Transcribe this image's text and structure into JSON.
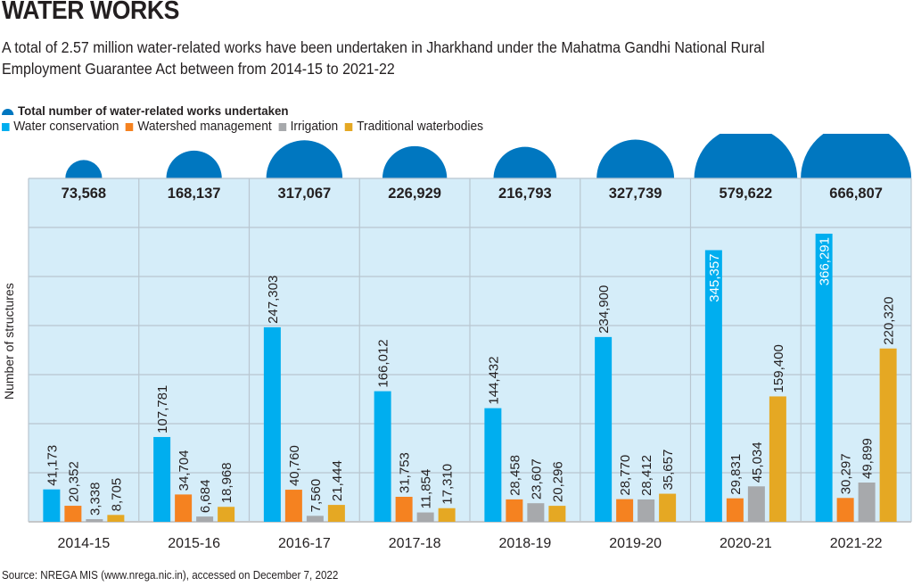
{
  "header": {
    "title": "WATER WORKS",
    "subtitle_line1": "A total of 2.57 million water-related works have been undertaken in Jharkhand under the Mahatma Gandhi National Rural",
    "subtitle_line2": "Employment Guarantee Act between from 2014-15 to 2021-22"
  },
  "legend": {
    "total_label": "Total number of water-related works undertaken",
    "series": [
      {
        "label": "Water conservation",
        "color": "#00aeef"
      },
      {
        "label": "Watershed management",
        "color": "#f58220"
      },
      {
        "label": "Irrigation",
        "color": "#a7a9ac"
      },
      {
        "label": "Traditional waterbodies",
        "color": "#e5a823"
      }
    ]
  },
  "colors": {
    "panel_bg": "#d5edf9",
    "grid": "#b9c6d0",
    "total_semicircle": "#0077c0",
    "text": "#231f20"
  },
  "source": "Source: NREGA MIS (www.nrega.nic.in), accessed on December 7, 2022",
  "chart_data": {
    "type": "bar",
    "title": "WATER WORKS",
    "xlabel": "",
    "ylabel": "Number of structures",
    "grid": true,
    "legend_position": "top-left",
    "categories": [
      "2014-15",
      "2015-16",
      "2016-17",
      "2017-18",
      "2018-19",
      "2019-20",
      "2020-21",
      "2021-22"
    ],
    "totals": {
      "name": "Total number of water-related works undertaken",
      "values": [
        73568,
        168137,
        317067,
        226929,
        216793,
        327739,
        579622,
        666807
      ],
      "labels": [
        "73,568",
        "168,137",
        "317,067",
        "226,929",
        "216,793",
        "327,739",
        "579,622",
        "666,807"
      ]
    },
    "series": [
      {
        "name": "Water conservation",
        "values": [
          41173,
          107781,
          247303,
          166012,
          144432,
          234900,
          345357,
          366291
        ],
        "labels": [
          "41,173",
          "107,781",
          "247,303",
          "166,012",
          "144,432",
          "234,900",
          "345,357",
          "366,291"
        ]
      },
      {
        "name": "Watershed management",
        "values": [
          20352,
          34704,
          40760,
          31753,
          28458,
          28770,
          29831,
          30297
        ],
        "labels": [
          "20,352",
          "34,704",
          "40,760",
          "31,753",
          "28,458",
          "28,770",
          "29,831",
          "30,297"
        ]
      },
      {
        "name": "Irrigation",
        "values": [
          3338,
          6684,
          7560,
          11854,
          23607,
          28412,
          45034,
          49899
        ],
        "labels": [
          "3,338",
          "6,684",
          "7,560",
          "11,854",
          "23,607",
          "28,412",
          "45,034",
          "49,899"
        ]
      },
      {
        "name": "Traditional waterbodies",
        "values": [
          8705,
          18968,
          21444,
          17310,
          20296,
          35657,
          159400,
          220320
        ],
        "labels": [
          "8,705",
          "18,968",
          "21,444",
          "17,310",
          "20,296",
          "35,657",
          "159,400",
          "220,320"
        ]
      }
    ],
    "ylim": [
      0,
      380000
    ]
  }
}
